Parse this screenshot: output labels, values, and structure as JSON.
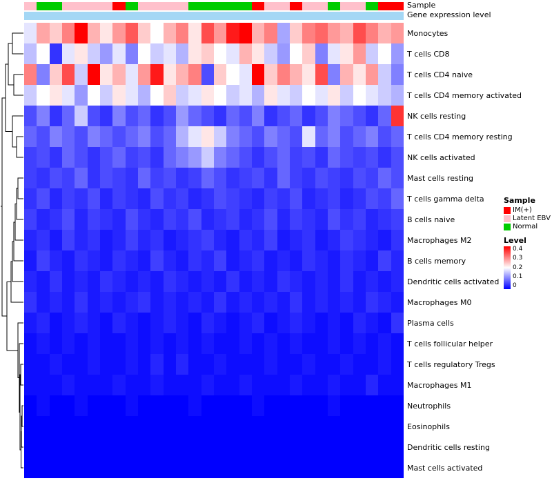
{
  "header": {
    "sample_bar_label": "Sample",
    "gene_bar_label": "Gene expression level"
  },
  "legend": {
    "sample": {
      "title": "Sample",
      "items": [
        {
          "label": "IM(+)",
          "color": "#FF0000"
        },
        {
          "label": "Latent EBV",
          "color": "#FFC0CB"
        },
        {
          "label": "Normal",
          "color": "#00CC00"
        }
      ]
    },
    "level": {
      "title": "Level",
      "ticks": [
        "0.4",
        "0.3",
        "0.2",
        "0.1",
        "0"
      ],
      "colors": [
        "#0000FF",
        "#FFFFFF",
        "#FF0000"
      ]
    }
  },
  "chart_data": {
    "type": "heatmap",
    "title": "",
    "xlabel": "",
    "ylabel": "",
    "zmin": 0,
    "zmax": 0.4,
    "colorscale": {
      "low": "#0000FF",
      "mid": "#FFFFFF",
      "high": "#FF0000",
      "midpoint": 0.2
    },
    "n_cols": 30,
    "rows": [
      "Monocytes",
      "T cells CD8",
      "T cells CD4 naive",
      "T cells CD4 memory activated",
      "NK cells resting",
      "T cells CD4 memory resting",
      "NK cells activated",
      "Mast cells resting",
      "T cells gamma delta",
      "B cells naive",
      "Macrophages M2",
      "B cells memory",
      "Dendritic cells activated",
      "Macrophages M0",
      "Plasma cells",
      "T cells follicular helper",
      "T cells regulatory  Tregs",
      "Macrophages M1",
      "Neutrophils",
      "Eosinophils",
      "Dendritic cells resting",
      "Mast cells activated"
    ],
    "annotation_colors": {
      "IM(+)": "#FF0000",
      "Latent EBV": "#FFC0CB",
      "Normal": "#00CC00"
    },
    "column_annotations": {
      "sample": [
        "Latent EBV",
        "Normal",
        "Normal",
        "Latent EBV",
        "Latent EBV",
        "Latent EBV",
        "Latent EBV",
        "IM(+)",
        "Normal",
        "Latent EBV",
        "Latent EBV",
        "Latent EBV",
        "Latent EBV",
        "Normal",
        "Normal",
        "Normal",
        "Normal",
        "Normal",
        "IM(+)",
        "Latent EBV",
        "Latent EBV",
        "IM(+)",
        "Latent EBV",
        "Latent EBV",
        "Normal",
        "Latent EBV",
        "Latent EBV",
        "Normal",
        "IM(+)",
        "IM(+)"
      ],
      "gene_expression_level_color": "#A4D7F5"
    },
    "values": [
      [
        0.18,
        0.27,
        0.24,
        0.3,
        0.4,
        0.26,
        0.22,
        0.28,
        0.33,
        0.24,
        0.2,
        0.26,
        0.3,
        0.22,
        0.34,
        0.28,
        0.38,
        0.4,
        0.26,
        0.3,
        0.13,
        0.24,
        0.3,
        0.32,
        0.28,
        0.26,
        0.34,
        0.3,
        0.26,
        0.28
      ],
      [
        0.15,
        0.2,
        0.04,
        0.18,
        0.22,
        0.16,
        0.12,
        0.18,
        0.1,
        0.2,
        0.16,
        0.18,
        0.14,
        0.22,
        0.24,
        0.2,
        0.18,
        0.26,
        0.22,
        0.16,
        0.12,
        0.2,
        0.24,
        0.1,
        0.18,
        0.22,
        0.28,
        0.16,
        0.2,
        0.12
      ],
      [
        0.3,
        0.1,
        0.24,
        0.34,
        0.16,
        0.4,
        0.22,
        0.26,
        0.18,
        0.28,
        0.38,
        0.22,
        0.26,
        0.3,
        0.06,
        0.24,
        0.2,
        0.18,
        0.4,
        0.24,
        0.3,
        0.26,
        0.22,
        0.34,
        0.1,
        0.26,
        0.22,
        0.28,
        0.16,
        0.1
      ],
      [
        0.16,
        0.2,
        0.22,
        0.18,
        0.12,
        0.2,
        0.16,
        0.22,
        0.18,
        0.14,
        0.2,
        0.24,
        0.16,
        0.18,
        0.22,
        0.2,
        0.16,
        0.18,
        0.14,
        0.22,
        0.18,
        0.16,
        0.2,
        0.18,
        0.22,
        0.16,
        0.2,
        0.18,
        0.16,
        0.14
      ],
      [
        0.06,
        0.1,
        0.04,
        0.08,
        0.16,
        0.06,
        0.04,
        0.1,
        0.06,
        0.08,
        0.04,
        0.06,
        0.12,
        0.08,
        0.06,
        0.04,
        0.08,
        0.06,
        0.1,
        0.04,
        0.06,
        0.08,
        0.04,
        0.06,
        0.1,
        0.08,
        0.06,
        0.04,
        0.08,
        0.36
      ],
      [
        0.08,
        0.06,
        0.1,
        0.08,
        0.06,
        0.1,
        0.08,
        0.06,
        0.08,
        0.1,
        0.06,
        0.08,
        0.14,
        0.18,
        0.22,
        0.16,
        0.1,
        0.08,
        0.06,
        0.1,
        0.08,
        0.06,
        0.18,
        0.08,
        0.1,
        0.06,
        0.08,
        0.1,
        0.06,
        0.08
      ],
      [
        0.05,
        0.06,
        0.04,
        0.08,
        0.06,
        0.04,
        0.06,
        0.08,
        0.05,
        0.06,
        0.04,
        0.08,
        0.1,
        0.12,
        0.16,
        0.1,
        0.08,
        0.06,
        0.04,
        0.06,
        0.08,
        0.05,
        0.06,
        0.04,
        0.08,
        0.06,
        0.05,
        0.06,
        0.04,
        0.06
      ],
      [
        0.05,
        0.04,
        0.06,
        0.05,
        0.08,
        0.04,
        0.06,
        0.05,
        0.04,
        0.08,
        0.05,
        0.06,
        0.04,
        0.05,
        0.08,
        0.06,
        0.04,
        0.05,
        0.06,
        0.04,
        0.08,
        0.05,
        0.04,
        0.06,
        0.05,
        0.04,
        0.06,
        0.05,
        0.08,
        0.06
      ],
      [
        0.04,
        0.06,
        0.03,
        0.05,
        0.04,
        0.06,
        0.03,
        0.05,
        0.04,
        0.03,
        0.06,
        0.04,
        0.05,
        0.03,
        0.04,
        0.06,
        0.05,
        0.04,
        0.03,
        0.05,
        0.04,
        0.06,
        0.03,
        0.04,
        0.05,
        0.03,
        0.04,
        0.06,
        0.05,
        0.08
      ],
      [
        0.05,
        0.03,
        0.04,
        0.06,
        0.03,
        0.05,
        0.04,
        0.03,
        0.06,
        0.04,
        0.03,
        0.05,
        0.04,
        0.06,
        0.03,
        0.04,
        0.05,
        0.03,
        0.04,
        0.06,
        0.03,
        0.05,
        0.04,
        0.03,
        0.06,
        0.04,
        0.05,
        0.03,
        0.04,
        0.05
      ],
      [
        0.03,
        0.04,
        0.02,
        0.05,
        0.03,
        0.04,
        0.02,
        0.03,
        0.05,
        0.03,
        0.04,
        0.02,
        0.03,
        0.04,
        0.05,
        0.03,
        0.02,
        0.04,
        0.03,
        0.05,
        0.02,
        0.03,
        0.04,
        0.02,
        0.03,
        0.05,
        0.04,
        0.03,
        0.02,
        0.04
      ],
      [
        0.02,
        0.05,
        0.03,
        0.02,
        0.04,
        0.03,
        0.02,
        0.04,
        0.03,
        0.02,
        0.05,
        0.03,
        0.02,
        0.04,
        0.03,
        0.05,
        0.02,
        0.03,
        0.04,
        0.02,
        0.03,
        0.02,
        0.04,
        0.03,
        0.02,
        0.04,
        0.03,
        0.02,
        0.05,
        0.03
      ],
      [
        0.03,
        0.02,
        0.04,
        0.02,
        0.03,
        0.02,
        0.04,
        0.03,
        0.02,
        0.03,
        0.02,
        0.04,
        0.03,
        0.02,
        0.03,
        0.02,
        0.04,
        0.02,
        0.03,
        0.02,
        0.04,
        0.03,
        0.02,
        0.03,
        0.02,
        0.04,
        0.02,
        0.03,
        0.02,
        0.03
      ],
      [
        0.04,
        0.02,
        0.03,
        0.02,
        0.04,
        0.02,
        0.03,
        0.02,
        0.03,
        0.04,
        0.02,
        0.03,
        0.02,
        0.03,
        0.02,
        0.04,
        0.02,
        0.03,
        0.02,
        0.03,
        0.02,
        0.04,
        0.02,
        0.03,
        0.02,
        0.03,
        0.02,
        0.04,
        0.03,
        0.02
      ],
      [
        0.02,
        0.03,
        0.01,
        0.02,
        0.03,
        0.02,
        0.01,
        0.03,
        0.02,
        0.01,
        0.02,
        0.03,
        0.02,
        0.01,
        0.03,
        0.02,
        0.01,
        0.02,
        0.03,
        0.01,
        0.02,
        0.03,
        0.02,
        0.01,
        0.02,
        0.01,
        0.03,
        0.02,
        0.01,
        0.04
      ],
      [
        0.01,
        0.02,
        0.01,
        0.02,
        0.01,
        0.02,
        0.01,
        0.01,
        0.02,
        0.01,
        0.02,
        0.01,
        0.02,
        0.01,
        0.02,
        0.01,
        0.01,
        0.02,
        0.01,
        0.02,
        0.01,
        0.02,
        0.01,
        0.01,
        0.02,
        0.01,
        0.02,
        0.01,
        0.02,
        0.01
      ],
      [
        0.01,
        0.01,
        0.02,
        0.01,
        0.01,
        0.02,
        0.01,
        0.01,
        0.02,
        0.01,
        0.03,
        0.01,
        0.03,
        0.01,
        0.01,
        0.02,
        0.01,
        0.01,
        0.01,
        0.02,
        0.01,
        0.01,
        0.02,
        0.01,
        0.01,
        0.02,
        0.01,
        0.01,
        0.02,
        0.01
      ],
      [
        0.01,
        0.01,
        0.01,
        0.02,
        0.01,
        0.01,
        0.01,
        0.02,
        0.01,
        0.01,
        0.02,
        0.01,
        0.01,
        0.01,
        0.02,
        0.01,
        0.01,
        0.02,
        0.01,
        0.01,
        0.01,
        0.02,
        0.01,
        0.01,
        0.02,
        0.01,
        0.01,
        0.03,
        0.01,
        0.01
      ],
      [
        0.0,
        0.01,
        0.0,
        0.0,
        0.01,
        0.0,
        0.0,
        0.0,
        0.01,
        0.0,
        0.0,
        0.0,
        0.0,
        0.01,
        0.0,
        0.0,
        0.0,
        0.0,
        0.01,
        0.0,
        0.0,
        0.0,
        0.0,
        0.0,
        0.01,
        0.0,
        0.0,
        0.0,
        0.0,
        0.0
      ],
      [
        0.0,
        0.0,
        0.0,
        0.0,
        0.0,
        0.0,
        0.0,
        0.0,
        0.0,
        0.0,
        0.0,
        0.0,
        0.0,
        0.0,
        0.0,
        0.0,
        0.0,
        0.0,
        0.0,
        0.0,
        0.0,
        0.0,
        0.0,
        0.0,
        0.0,
        0.0,
        0.0,
        0.0,
        0.0,
        0.0
      ],
      [
        0.0,
        0.0,
        0.0,
        0.0,
        0.0,
        0.0,
        0.0,
        0.0,
        0.0,
        0.0,
        0.0,
        0.0,
        0.0,
        0.0,
        0.0,
        0.0,
        0.0,
        0.0,
        0.0,
        0.0,
        0.0,
        0.0,
        0.0,
        0.0,
        0.0,
        0.0,
        0.0,
        0.0,
        0.0,
        0.0
      ],
      [
        0.0,
        0.0,
        0.0,
        0.0,
        0.0,
        0.0,
        0.0,
        0.0,
        0.0,
        0.0,
        0.0,
        0.0,
        0.0,
        0.0,
        0.0,
        0.0,
        0.0,
        0.0,
        0.0,
        0.0,
        0.0,
        0.0,
        0.0,
        0.0,
        0.0,
        0.0,
        0.0,
        0.0,
        0.0,
        0.0
      ]
    ]
  }
}
